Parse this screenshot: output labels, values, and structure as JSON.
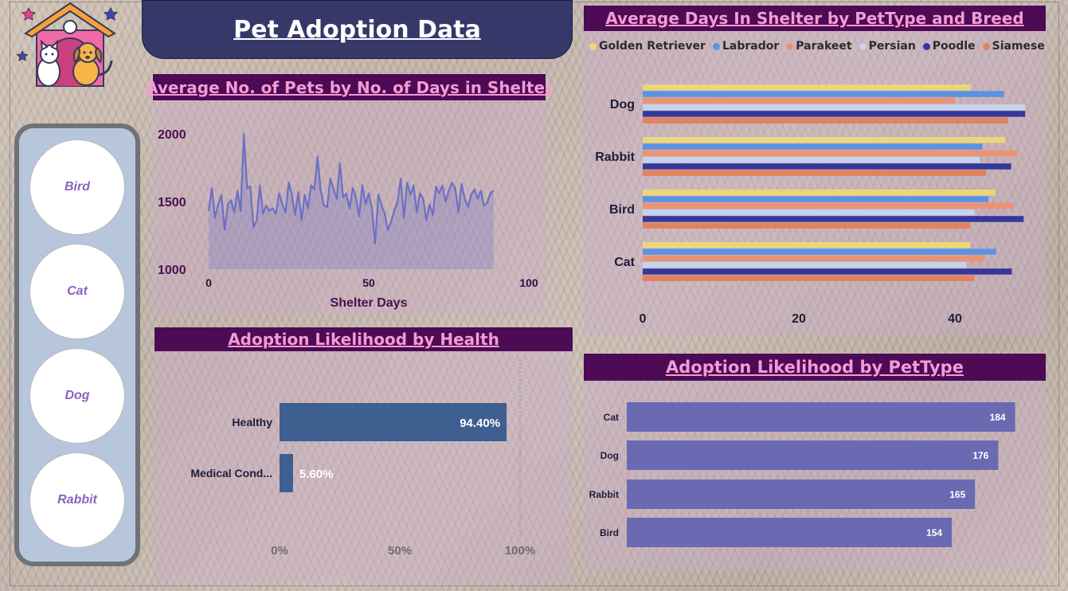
{
  "dashboard": {
    "title": "Pet Adoption Data"
  },
  "slicer": {
    "items": [
      "Bird",
      "Cat",
      "Dog",
      "Rabbit"
    ]
  },
  "colors": {
    "banner": "#353868",
    "header_bg": "#4d0a55",
    "header_text": "#f39cd3",
    "line": "#6a70c4",
    "health_bar": "#3e5f90",
    "pettype_bar": "#6a6ab3"
  },
  "chart_data": [
    {
      "id": "line",
      "type": "area",
      "title": "Average No. of Pets by No. of Days in Shelter",
      "xlabel": "Shelter Days",
      "ylabel": "",
      "xlim": [
        0,
        100
      ],
      "ylim": [
        1000,
        2000
      ],
      "x_ticks": [
        "0",
        "50",
        "100"
      ],
      "y_ticks": [
        "2000",
        "1500",
        "1000"
      ],
      "x": [
        0,
        1,
        2,
        3,
        4,
        5,
        6,
        7,
        8,
        9,
        10,
        11,
        12,
        13,
        14,
        15,
        16,
        17,
        18,
        19,
        20,
        21,
        22,
        23,
        24,
        25,
        26,
        27,
        28,
        29,
        30,
        31,
        32,
        33,
        34,
        35,
        36,
        37,
        38,
        39,
        40,
        41,
        42,
        43,
        44,
        45,
        46,
        47,
        48,
        49,
        50,
        51,
        52,
        53,
        54,
        55,
        56,
        57,
        58,
        59,
        60,
        61,
        62,
        63,
        64,
        65,
        66,
        67,
        68,
        69,
        70,
        71,
        72,
        73,
        74,
        75,
        76,
        77,
        78,
        79,
        80,
        81,
        82,
        83,
        84,
        85,
        86,
        87,
        88,
        89
      ],
      "values": [
        1430,
        1600,
        1380,
        1480,
        1550,
        1290,
        1480,
        1510,
        1420,
        1580,
        1430,
        2000,
        1600,
        1610,
        1310,
        1360,
        1620,
        1410,
        1470,
        1430,
        1450,
        1410,
        1560,
        1480,
        1420,
        1640,
        1550,
        1400,
        1570,
        1360,
        1550,
        1450,
        1620,
        1590,
        1830,
        1580,
        1470,
        1460,
        1670,
        1590,
        1520,
        1780,
        1530,
        1560,
        1450,
        1600,
        1530,
        1390,
        1620,
        1480,
        1560,
        1450,
        1190,
        1550,
        1470,
        1410,
        1290,
        1350,
        1440,
        1500,
        1670,
        1380,
        1640,
        1550,
        1620,
        1420,
        1560,
        1520,
        1360,
        1480,
        1400,
        1610,
        1560,
        1620,
        1500,
        1580,
        1640,
        1600,
        1420,
        1630,
        1520,
        1460,
        1550,
        1590,
        1520,
        1580,
        1470,
        1490,
        1560,
        1580
      ]
    },
    {
      "id": "breed",
      "type": "bar",
      "orientation": "horizontal",
      "title": "Average Days In Shelter by PetType and Breed",
      "categories": [
        "Dog",
        "Rabbit",
        "Bird",
        "Cat"
      ],
      "xlim": [
        0,
        50
      ],
      "x_ticks": [
        "0",
        "20",
        "40"
      ],
      "legend_position": "top",
      "series": [
        {
          "name": "Golden Retriever",
          "color": "#ecd67a",
          "values": [
            42,
            46.5,
            45.2,
            42
          ]
        },
        {
          "name": "Labrador",
          "color": "#5c92e3",
          "values": [
            46.3,
            43.5,
            44.3,
            45.3
          ]
        },
        {
          "name": "Parakeet",
          "color": "#e99474",
          "values": [
            40,
            48,
            47.5,
            43.8
          ]
        },
        {
          "name": "Persian",
          "color": "#c6d3ec",
          "values": [
            49,
            43.2,
            42.5,
            41.5
          ]
        },
        {
          "name": "Poodle",
          "color": "#35389a",
          "values": [
            49,
            47.2,
            48.8,
            47.3
          ]
        },
        {
          "name": "Siamese",
          "color": "#e2825f",
          "values": [
            46.8,
            44,
            42,
            42.5
          ]
        }
      ]
    },
    {
      "id": "health",
      "type": "bar",
      "orientation": "horizontal",
      "title": "Adoption Likelihood by Health",
      "categories": [
        "Healthy",
        "Medical Cond..."
      ],
      "values": [
        94.4,
        5.6
      ],
      "labels": [
        "94.40%",
        "5.60%"
      ],
      "xlim": [
        0,
        100
      ],
      "x_ticks": [
        "0%",
        "50%",
        "100%"
      ]
    },
    {
      "id": "pettype",
      "type": "bar",
      "orientation": "horizontal",
      "title": "Adoption Likelihood by PetType",
      "categories": [
        "Cat",
        "Dog",
        "Rabbit",
        "Bird"
      ],
      "values": [
        184,
        176,
        165,
        154
      ],
      "labels": [
        "184",
        "176",
        "165",
        "154"
      ],
      "xlim": [
        0,
        200
      ]
    }
  ]
}
